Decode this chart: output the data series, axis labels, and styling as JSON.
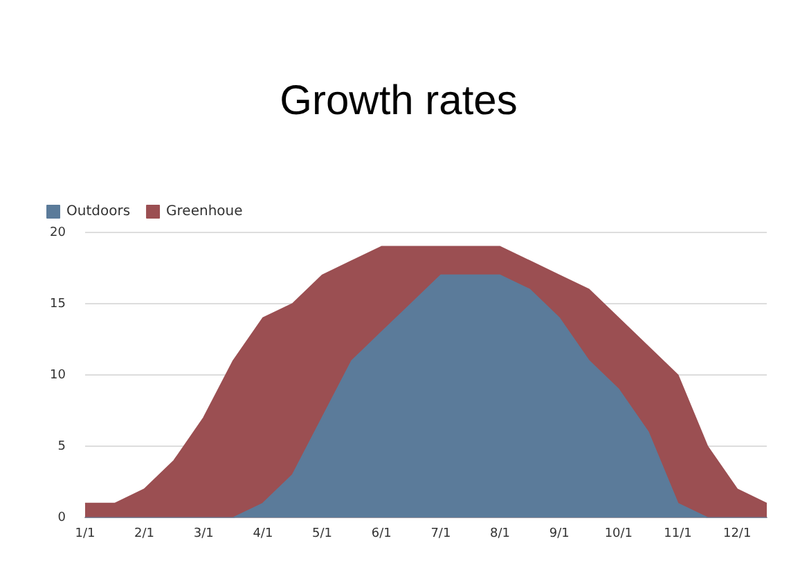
{
  "chart_data": {
    "type": "area",
    "title": "Growth rates",
    "categories": [
      "1/1",
      null,
      "2/1",
      null,
      "3/1",
      null,
      "4/1",
      null,
      "5/1",
      null,
      "6/1",
      null,
      "7/1",
      null,
      "8/1",
      null,
      "9/1",
      null,
      "10/1",
      null,
      "11/1",
      null,
      "12/1",
      null
    ],
    "series": [
      {
        "name": "Outdoors",
        "color": "#5b7b9a",
        "values": [
          0,
          0,
          0,
          0,
          0,
          0,
          1,
          3,
          7,
          11,
          13,
          15,
          17,
          17,
          17,
          16,
          14,
          11,
          9,
          6,
          1,
          0,
          0,
          0
        ]
      },
      {
        "name": "Greenhoue",
        "color": "#9b4f52",
        "values": [
          1,
          1,
          2,
          4,
          7,
          11,
          14,
          15,
          17,
          18,
          19,
          19,
          19,
          19,
          19,
          18,
          17,
          16,
          14,
          12,
          10,
          5,
          2,
          1
        ]
      }
    ],
    "ylim": [
      0,
      20
    ],
    "yticks": [
      0,
      5,
      10,
      15,
      20
    ],
    "grid": "y",
    "legend": "top left"
  }
}
